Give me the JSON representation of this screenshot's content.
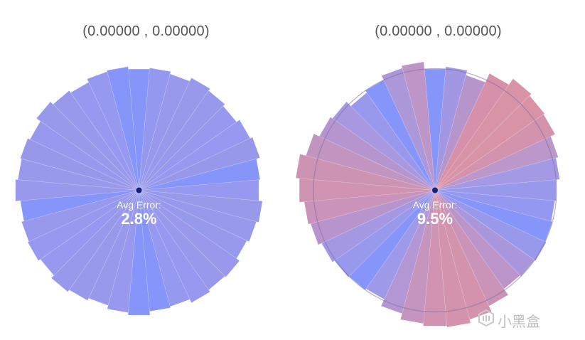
{
  "panels": [
    {
      "id": "left",
      "coordinate_text": "(0.00000 , 0.00000)",
      "error_title": "Avg Error:",
      "error_value": "2.8%",
      "radius_factors": [
        1.0,
        1.01,
        0.99,
        1.02,
        1.0,
        0.98,
        1.01,
        1.03,
        1.0,
        0.99,
        1.02,
        1.0,
        0.98,
        1.01,
        1.0,
        1.02,
        0.99,
        1.0,
        1.03,
        1.01,
        0.98,
        1.0,
        1.02,
        0.99,
        1.01,
        1.0,
        0.98,
        1.02,
        1.0,
        1.01,
        0.99,
        1.03,
        1.0,
        0.98,
        1.01,
        1.02
      ],
      "wedge_colors": [
        "#7c8cfa",
        "#8b90ee",
        "#8f8fec",
        "#9090ea",
        "#8f8fea",
        "#8e8fed",
        "#8d90ee",
        "#8f8fe9",
        "#7c8cfa",
        "#8e8fee",
        "#9090e8",
        "#8f8fec",
        "#8e90ec",
        "#908fea",
        "#8f8fec",
        "#8e8fee",
        "#8d90ef",
        "#7c8cfa",
        "#7c8cfa",
        "#8e8fed",
        "#8f90eb",
        "#9090ea",
        "#8f8fec",
        "#8e8fee",
        "#8d90ed",
        "#8f8fec",
        "#7c8cfa",
        "#8f8fec",
        "#9090ea",
        "#8f8fe9",
        "#8e90ed",
        "#9090e9",
        "#8f8fec",
        "#8e8fee",
        "#8d90ef",
        "#7c8cfa"
      ]
    },
    {
      "id": "right",
      "coordinate_text": "(0.00000 , 0.00000)",
      "error_title": "Avg Error:",
      "error_value": "9.5%",
      "radius_factors": [
        1.0,
        1.02,
        0.98,
        1.06,
        1.12,
        1.1,
        1.09,
        1.05,
        1.03,
        1.0,
        0.99,
        1.0,
        1.01,
        1.0,
        0.99,
        1.05,
        1.1,
        1.13,
        1.12,
        1.1,
        1.05,
        0.99,
        1.0,
        1.01,
        1.03,
        1.06,
        1.08,
        1.12,
        1.15,
        1.1,
        1.05,
        1.03,
        0.98,
        1.0,
        1.04,
        1.06
      ],
      "wedge_colors": [
        "#7c8cfa",
        "#9a8ee0",
        "#b08cc6",
        "#d487a2",
        "#d68aa0",
        "#d68aa0",
        "#cf8aa6",
        "#b68ec4",
        "#9c90e2",
        "#9090ea",
        "#8b8ff0",
        "#7c8cfa",
        "#9090ea",
        "#a38ed8",
        "#b58cc4",
        "#c58ab2",
        "#d08aa6",
        "#d08aa6",
        "#cc8aaa",
        "#c08cb8",
        "#ac8ed0",
        "#9690e6",
        "#7c8cfa",
        "#8f8fec",
        "#9c8fe0",
        "#b18cc8",
        "#c48ab4",
        "#cc8aaa",
        "#c98aad",
        "#bd8cbc",
        "#b08cca",
        "#9f8fdc",
        "#8f8fec",
        "#7c8cfa",
        "#a58ed6",
        "#b88cc2"
      ]
    }
  ],
  "watermark": {
    "text": "小黑盒"
  }
}
